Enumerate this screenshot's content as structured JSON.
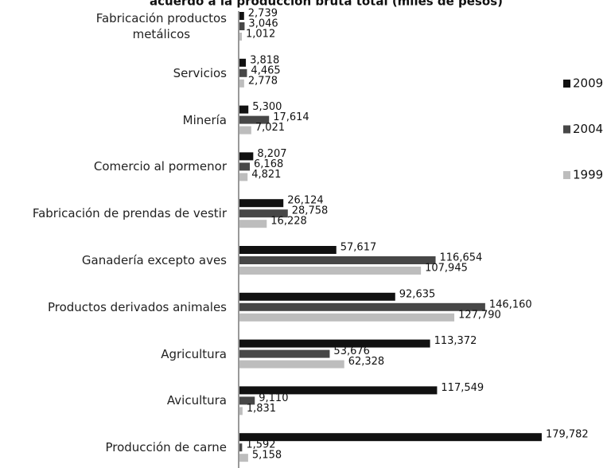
{
  "chart_data": {
    "type": "bar",
    "orientation": "horizontal",
    "title": "acuerdo a la producción bruta total (miles de pesos)",
    "categories": [
      "Fabricación productos\nmetálicos",
      "Servicios",
      "Minería",
      "Comercio al pormenor",
      "Fabricación de prendas de vestir",
      "Ganadería excepto aves",
      "Productos derivados animales",
      "Agricultura",
      "Avicultura",
      "Producción de carne"
    ],
    "xlim": [
      0,
      180000
    ],
    "legend": "right",
    "series": [
      {
        "name": "2009",
        "color": "#111111",
        "values": [
          2739,
          3818,
          5300,
          8207,
          26124,
          57617,
          92635,
          113372,
          117549,
          179782
        ],
        "value_labels": [
          "2,739",
          "3,818",
          "5,300",
          "8,207",
          "26,124",
          "57,617",
          "92,635",
          "113,372",
          "117,549",
          "179,782"
        ]
      },
      {
        "name": "2004",
        "color": "#474747",
        "values": [
          3046,
          4465,
          17614,
          6168,
          28758,
          116654,
          146160,
          53676,
          9110,
          1592
        ],
        "value_labels": [
          "3,046",
          "4,465",
          "17,614",
          "6,168",
          "28,758",
          "116,654",
          "146,160",
          "53,676",
          "9,110",
          "1,592"
        ]
      },
      {
        "name": "1999",
        "color": "#bdbdbd",
        "values": [
          1012,
          2778,
          7021,
          4821,
          16228,
          107945,
          127790,
          62328,
          1831,
          5158
        ],
        "value_labels": [
          "1,012",
          "2,778",
          "7,021",
          "4,821",
          "16,228",
          "107,945",
          "127,790",
          "62,328",
          "1,831",
          "5,158"
        ]
      }
    ]
  }
}
